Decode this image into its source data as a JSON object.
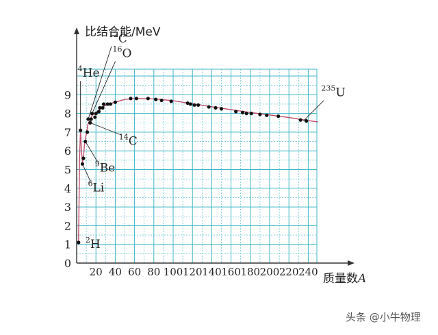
{
  "chart_data": {
    "type": "scatter",
    "ylabel": "比结合能/MeV",
    "xlabel": "质量数",
    "xlabel_var": "A",
    "xlim": [
      0,
      250
    ],
    "ylim": [
      0,
      10
    ],
    "x_ticks": [
      20,
      40,
      60,
      80,
      100,
      120,
      140,
      160,
      180,
      200,
      220,
      240
    ],
    "y_ticks": [
      0,
      1,
      2,
      3,
      4,
      5,
      6,
      7,
      8,
      9
    ],
    "grid": true,
    "points": [
      {
        "x": 2,
        "y": 1.1
      },
      {
        "x": 4,
        "y": 7.1
      },
      {
        "x": 6,
        "y": 5.3
      },
      {
        "x": 7,
        "y": 5.6
      },
      {
        "x": 9,
        "y": 6.5
      },
      {
        "x": 11,
        "y": 7.0
      },
      {
        "x": 12,
        "y": 7.7
      },
      {
        "x": 14,
        "y": 7.5
      },
      {
        "x": 15,
        "y": 7.7
      },
      {
        "x": 16,
        "y": 8.0
      },
      {
        "x": 19,
        "y": 7.8
      },
      {
        "x": 20,
        "y": 8.0
      },
      {
        "x": 23,
        "y": 8.1
      },
      {
        "x": 24,
        "y": 8.3
      },
      {
        "x": 27,
        "y": 8.3
      },
      {
        "x": 28,
        "y": 8.5
      },
      {
        "x": 32,
        "y": 8.5
      },
      {
        "x": 35,
        "y": 8.5
      },
      {
        "x": 40,
        "y": 8.6
      },
      {
        "x": 56,
        "y": 8.8
      },
      {
        "x": 62,
        "y": 8.8
      },
      {
        "x": 74,
        "y": 8.8
      },
      {
        "x": 82,
        "y": 8.75
      },
      {
        "x": 88,
        "y": 8.7
      },
      {
        "x": 98,
        "y": 8.65
      },
      {
        "x": 115,
        "y": 8.55
      },
      {
        "x": 118,
        "y": 8.5
      },
      {
        "x": 122,
        "y": 8.45
      },
      {
        "x": 126,
        "y": 8.45
      },
      {
        "x": 137,
        "y": 8.35
      },
      {
        "x": 144,
        "y": 8.3
      },
      {
        "x": 150,
        "y": 8.25
      },
      {
        "x": 165,
        "y": 8.1
      },
      {
        "x": 172,
        "y": 8.05
      },
      {
        "x": 176,
        "y": 8.0
      },
      {
        "x": 181,
        "y": 8.0
      },
      {
        "x": 190,
        "y": 7.95
      },
      {
        "x": 197,
        "y": 7.9
      },
      {
        "x": 209,
        "y": 7.85
      },
      {
        "x": 232,
        "y": 7.65
      },
      {
        "x": 238,
        "y": 7.6
      }
    ],
    "curve": [
      [
        1,
        1.1
      ],
      [
        2,
        1.1
      ],
      [
        3,
        5.5
      ],
      [
        4,
        7.1
      ],
      [
        5,
        6.0
      ],
      [
        6,
        5.4
      ],
      [
        7,
        5.6
      ],
      [
        8,
        6.3
      ],
      [
        10,
        6.9
      ],
      [
        12,
        7.5
      ],
      [
        14,
        7.6
      ],
      [
        16,
        7.9
      ],
      [
        20,
        8.05
      ],
      [
        25,
        8.25
      ],
      [
        30,
        8.45
      ],
      [
        40,
        8.6
      ],
      [
        50,
        8.75
      ],
      [
        60,
        8.8
      ],
      [
        80,
        8.78
      ],
      [
        100,
        8.68
      ],
      [
        120,
        8.52
      ],
      [
        140,
        8.36
      ],
      [
        160,
        8.2
      ],
      [
        180,
        8.05
      ],
      [
        200,
        7.92
      ],
      [
        220,
        7.78
      ],
      [
        240,
        7.62
      ],
      [
        250,
        7.55
      ]
    ],
    "annotations": [
      {
        "sup": "2",
        "symbol": "H",
        "x": 2,
        "y": 1.1
      },
      {
        "sup": "4",
        "symbol": "He",
        "x": 4,
        "y": 7.1
      },
      {
        "sup": "6",
        "symbol": "Li",
        "x": 6,
        "y": 5.3
      },
      {
        "sup": "9",
        "symbol": "Be",
        "x": 9,
        "y": 6.5
      },
      {
        "sup": "12",
        "symbol": "C",
        "x": 12,
        "y": 7.7
      },
      {
        "sup": "14",
        "symbol": "C",
        "x": 14,
        "y": 7.5
      },
      {
        "sup": "16",
        "symbol": "O",
        "x": 16,
        "y": 8.0
      },
      {
        "sup": "235",
        "symbol": "U",
        "x": 235,
        "y": 7.6
      }
    ]
  },
  "colors": {
    "grid": "#3fb6c8",
    "axis": "#333333",
    "curve": "#c04a6a",
    "point": "#111111"
  },
  "watermark": "头条 @小牛物理"
}
